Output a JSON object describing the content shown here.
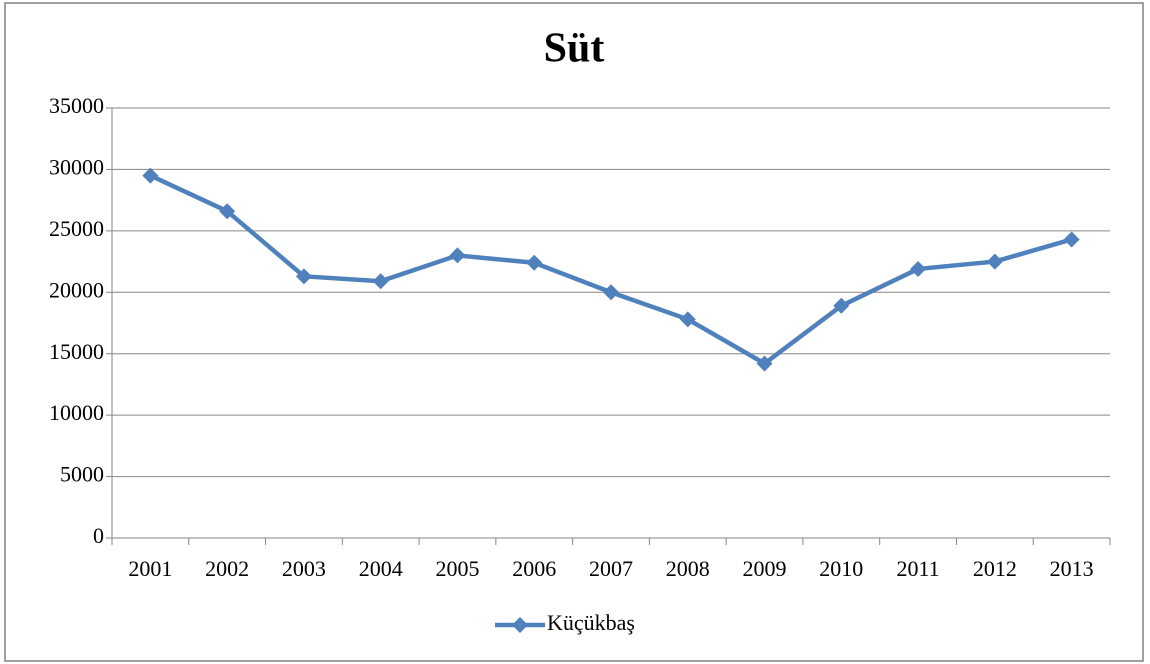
{
  "chart_data": {
    "type": "line",
    "title": "Süt",
    "categories": [
      "2001",
      "2002",
      "2003",
      "2004",
      "2005",
      "2006",
      "2007",
      "2008",
      "2009",
      "2010",
      "2011",
      "2012",
      "2013"
    ],
    "series": [
      {
        "name": "Küçükbaş",
        "color": "#4f81bd",
        "values": [
          29500,
          26600,
          21300,
          20900,
          23000,
          22400,
          20000,
          17800,
          14200,
          18900,
          21900,
          22500,
          24300
        ]
      }
    ],
    "ylim": [
      0,
      35000
    ],
    "yticks": [
      0,
      5000,
      10000,
      15000,
      20000,
      25000,
      30000,
      35000
    ],
    "grid": true,
    "legend": "bottom"
  }
}
